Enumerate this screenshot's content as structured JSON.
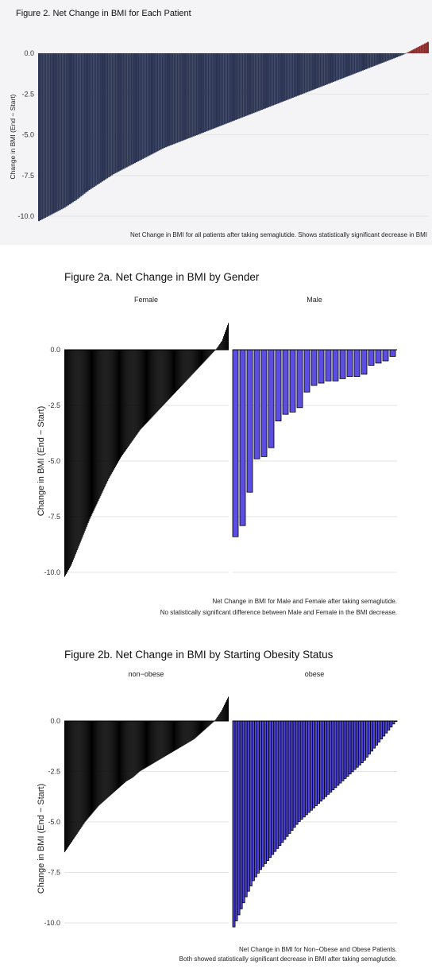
{
  "chart_data": [
    {
      "type": "bar",
      "title": "Figure 2. Net Change in BMI for Each Patient",
      "ylabel": "Change in BMI (End − Start)",
      "caption": "Net Change in BMI for all patients after taking semaglutide. Shows statistically significant decrease in BMI",
      "yticks": [
        "0.0",
        "-2.5",
        "-5.0",
        "-7.5",
        "-10.0"
      ],
      "ylim": [
        -10.4,
        0.8
      ],
      "grid": true,
      "bar_color": "#2c3553",
      "positive_color": "#8b2c2c",
      "n_bars": 240,
      "series": [
        {
          "values": [
            -10.3,
            -9.9,
            -9.5,
            -9.0,
            -8.4,
            -7.9,
            -7.4,
            -7.0,
            -6.6,
            -6.2,
            -5.8,
            -5.5,
            -5.2,
            -4.9,
            -4.6,
            -4.3,
            -4.0,
            -3.7,
            -3.4,
            -3.1,
            -2.8,
            -2.5,
            -2.2,
            -1.9,
            -1.6,
            -1.3,
            -1.0,
            -0.7,
            -0.4,
            -0.1,
            0.3,
            0.7
          ]
        }
      ]
    },
    {
      "type": "bar",
      "title": "Figure 2a. Net Change in BMI by Gender",
      "ylabel": "Change in BMI (End − Start)",
      "caption_lines": [
        "Net Change in BMI for Male and Female after taking semaglutide.",
        "No statistically significant difference between Male and Female in the BMI decrease."
      ],
      "yticks": [
        "0.0",
        "-2.5",
        "-5.0",
        "-7.5",
        "-10.0"
      ],
      "ylim": [
        -10.2,
        1.2
      ],
      "grid": true,
      "panels": [
        {
          "label": "Female",
          "fill": "#000000",
          "n_bars": 210,
          "values": [
            -10.2,
            -9.7,
            -9.0,
            -8.3,
            -7.6,
            -7.0,
            -6.4,
            -5.8,
            -5.3,
            -4.8,
            -4.4,
            -4.0,
            -3.6,
            -3.3,
            -3.0,
            -2.7,
            -2.4,
            -2.1,
            -1.8,
            -1.5,
            -1.2,
            -0.9,
            -0.6,
            -0.3,
            0.0,
            0.4,
            1.2
          ]
        },
        {
          "label": "Male",
          "fill": "#5b4ee0",
          "values": [
            -8.4,
            -7.9,
            -6.4,
            -4.9,
            -4.8,
            -4.4,
            -3.2,
            -2.9,
            -2.8,
            -2.6,
            -1.9,
            -1.6,
            -1.5,
            -1.4,
            -1.4,
            -1.3,
            -1.2,
            -1.2,
            -1.1,
            -0.7,
            -0.6,
            -0.5,
            -0.3
          ]
        }
      ]
    },
    {
      "type": "bar",
      "title": "Figure 2b. Net Change in BMI by Starting Obesity Status",
      "ylabel": "Change in BMI (End − Start)",
      "caption_lines": [
        "Net Change in BMI for Non−Obese and Obese Patients.",
        "Both showed statistically significant decrease in BMI after taking semaglutide."
      ],
      "yticks": [
        "0.0",
        "-2.5",
        "-5.0",
        "-7.5",
        "-10.0"
      ],
      "ylim": [
        -10.2,
        1.2
      ],
      "grid": true,
      "panels": [
        {
          "label": "non−obese",
          "fill": "#000000",
          "n_bars": 210,
          "values": [
            -6.5,
            -6.0,
            -5.5,
            -5.0,
            -4.6,
            -4.2,
            -3.9,
            -3.6,
            -3.3,
            -3.0,
            -2.8,
            -2.5,
            -2.3,
            -2.1,
            -1.9,
            -1.7,
            -1.5,
            -1.3,
            -1.1,
            -0.9,
            -0.6,
            -0.3,
            0.0,
            0.5,
            1.2
          ]
        },
        {
          "label": "obese",
          "fill": "#4e44d6",
          "n_bars": 68,
          "values": [
            -10.2,
            -9.4,
            -8.6,
            -7.9,
            -7.4,
            -7.0,
            -6.6,
            -6.2,
            -5.8,
            -5.4,
            -5.0,
            -4.7,
            -4.4,
            -4.1,
            -3.8,
            -3.5,
            -3.2,
            -2.9,
            -2.6,
            -2.3,
            -2.0,
            -1.6,
            -1.2,
            -0.8,
            -0.4,
            0.0
          ]
        }
      ]
    }
  ]
}
